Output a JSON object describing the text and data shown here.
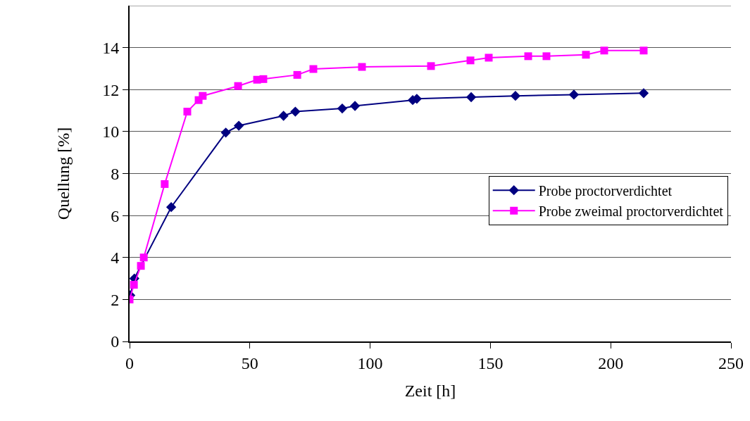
{
  "chart_data": {
    "type": "line",
    "xlabel": "Zeit [h]",
    "ylabel": "Quellung [%]",
    "xlim": [
      0,
      250
    ],
    "xticks": [
      0,
      50,
      100,
      150,
      200,
      250
    ],
    "ylim": [
      0,
      16
    ],
    "yticks": [
      0,
      2,
      4,
      6,
      8,
      10,
      12,
      14
    ],
    "grid": "y",
    "legend": "right",
    "series": [
      {
        "name": "Probe proctorverdichtet",
        "color": "#000080",
        "marker": "diamond",
        "x": [
          0.3,
          2,
          17.3,
          40,
          45.4,
          64,
          68.9,
          88.4,
          93.7,
          117.7,
          119.4,
          142,
          160.4,
          184.7,
          213.7
        ],
        "values": [
          2.2,
          3.0,
          6.4,
          9.95,
          10.28,
          10.75,
          10.95,
          11.1,
          11.22,
          11.5,
          11.56,
          11.64,
          11.7,
          11.76,
          11.83
        ]
      },
      {
        "name": "Probe zweimal proctorverdichtet",
        "color": "#ff00ff",
        "marker": "square",
        "x": [
          0,
          1.8,
          4.7,
          5.9,
          14.6,
          24,
          28.7,
          30.4,
          45.1,
          53,
          55.6,
          69.7,
          76.4,
          96.6,
          125.3,
          141.7,
          149.3,
          165.7,
          173.3,
          189.7,
          197.3,
          213.7
        ],
        "values": [
          2.0,
          2.7,
          3.6,
          4.0,
          7.5,
          10.95,
          11.5,
          11.7,
          12.17,
          12.47,
          12.5,
          12.7,
          12.98,
          13.08,
          13.12,
          13.39,
          13.52,
          13.59,
          13.59,
          13.66,
          13.86,
          13.86
        ]
      }
    ]
  }
}
